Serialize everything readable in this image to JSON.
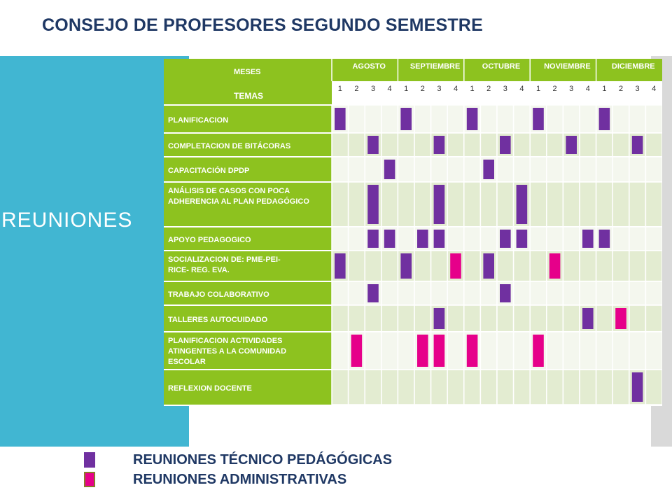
{
  "title": "CONSEJO DE  PROFESORES SEGUNDO SEMESTRE",
  "side_label": "REUNIONES",
  "table": {
    "header_months_label": "MESES",
    "header_topics_label": "TEMAS",
    "months": [
      "AGOSTO",
      "SEPTIEMBRE",
      "OCTUBRE",
      "NOVIEMBRE",
      "DICIEMBRE"
    ],
    "weeks": [
      "1",
      "2",
      "3",
      "4"
    ],
    "rows": [
      {
        "topic": "PLANIFICACION",
        "cells": [
          1,
          0,
          0,
          0,
          1,
          0,
          0,
          0,
          1,
          0,
          0,
          0,
          1,
          0,
          0,
          0,
          1,
          0,
          0,
          0
        ]
      },
      {
        "topic": "COMPLETACION DE BITÁCORAS",
        "cells": [
          0,
          0,
          1,
          0,
          0,
          0,
          1,
          0,
          0,
          0,
          1,
          0,
          0,
          0,
          1,
          0,
          0,
          0,
          1,
          0
        ]
      },
      {
        "topic": "CAPACITACIÓN DPDP",
        "cells": [
          0,
          0,
          0,
          1,
          0,
          0,
          0,
          0,
          0,
          1,
          0,
          0,
          0,
          0,
          0,
          0,
          0,
          0,
          0,
          0
        ]
      },
      {
        "topic": "ANÁLISIS DE CASOS CON POCA ADHERENCIA AL PLAN PEDAGÓGICO",
        "cells": [
          0,
          0,
          1,
          0,
          0,
          0,
          1,
          0,
          0,
          0,
          0,
          1,
          0,
          0,
          0,
          0,
          0,
          0,
          0,
          0
        ]
      },
      {
        "topic": "APOYO PEDAGOGICO",
        "cells": [
          0,
          0,
          1,
          1,
          0,
          1,
          1,
          0,
          0,
          0,
          1,
          1,
          0,
          0,
          0,
          1,
          1,
          0,
          0,
          0
        ]
      },
      {
        "topic": "SOCIALIZACION DE: PME-PEI- RICE- REG. EVA.",
        "cells": [
          1,
          0,
          0,
          0,
          1,
          0,
          0,
          2,
          0,
          1,
          0,
          0,
          0,
          2,
          0,
          0,
          0,
          0,
          0,
          0
        ]
      },
      {
        "topic": "TRABAJO COLABORATIVO",
        "cells": [
          0,
          0,
          1,
          0,
          0,
          0,
          0,
          0,
          0,
          0,
          1,
          0,
          0,
          0,
          0,
          0,
          0,
          0,
          0,
          0
        ]
      },
      {
        "topic": "TALLERES AUTOCUIDADO",
        "cells": [
          0,
          0,
          0,
          0,
          0,
          0,
          1,
          0,
          0,
          0,
          0,
          0,
          0,
          0,
          0,
          1,
          0,
          2,
          0,
          0
        ]
      },
      {
        "topic": "PLANIFICACION ACTIVIDADES ATINGENTES A LA COMUNIDAD ESCOLAR",
        "cells": [
          0,
          2,
          0,
          0,
          0,
          2,
          2,
          0,
          2,
          0,
          0,
          0,
          2,
          0,
          0,
          0,
          0,
          0,
          0,
          0
        ]
      },
      {
        "topic": "REFLEXION DOCENTE",
        "cells": [
          0,
          0,
          0,
          0,
          0,
          0,
          0,
          0,
          0,
          0,
          0,
          0,
          0,
          0,
          0,
          0,
          0,
          0,
          1,
          0
        ]
      }
    ]
  },
  "legend": [
    {
      "label": "REUNIONES TÉCNICO PEDÁGÓGICAS",
      "color": "#7030a0"
    },
    {
      "label": "REUNIONES ADMINISTRATIVAS",
      "color": "#e6008a"
    }
  ],
  "colors": {
    "header_green": "#8dc21f",
    "row_light": "#e3ecd1",
    "row_white": "#f4f7ee",
    "technical": "#7030a0",
    "administrative": "#e6008a"
  }
}
